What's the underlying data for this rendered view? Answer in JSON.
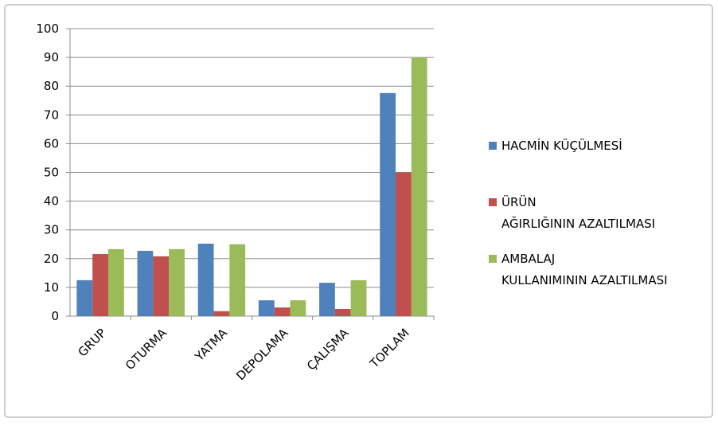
{
  "chart_data": {
    "type": "bar",
    "categories": [
      "GRUP",
      "OTURMA",
      "YATMA",
      "DEPOLAMA",
      "ÇALIŞMA",
      "TOPLAM"
    ],
    "series": [
      {
        "name": "HACMİN KÜÇÜLMESİ",
        "color": "#4f81bd",
        "values": [
          12.5,
          22.7,
          25.2,
          5.5,
          11.6,
          77.6
        ]
      },
      {
        "name": "ÜRÜN AĞIRLIĞININ AZALTILMASI",
        "color": "#c0504d",
        "values": [
          21.6,
          20.8,
          1.7,
          3,
          2.5,
          50
        ]
      },
      {
        "name": "AMBALAJ KULLANIMININ AZALTILMASI",
        "color": "#9bbb59",
        "values": [
          23.3,
          23.3,
          25,
          5.5,
          12.5,
          90
        ]
      }
    ],
    "ylim": [
      0,
      100
    ],
    "yticks": [
      0,
      10,
      20,
      30,
      40,
      50,
      60,
      70,
      80,
      90,
      100
    ],
    "grid": true,
    "legend": "right"
  }
}
